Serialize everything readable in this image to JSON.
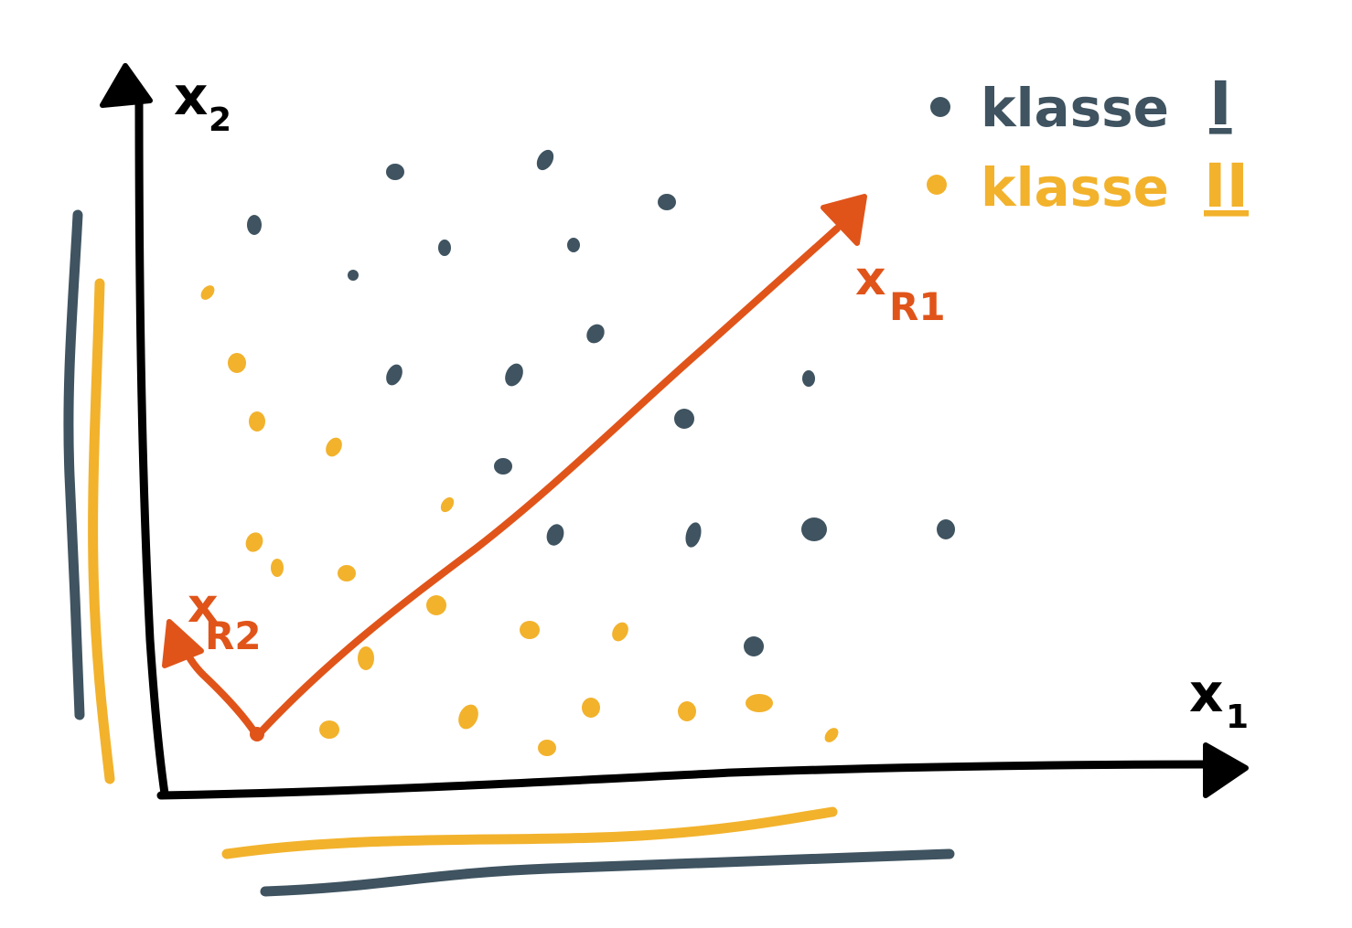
{
  "colors": {
    "axis": "#000000",
    "class1": "#3f5360",
    "class2": "#f2b22c",
    "vector": "#e0541a"
  },
  "axes": {
    "x_label": "x",
    "x_sub": "1",
    "y_label": "x",
    "y_sub": "2"
  },
  "legend": {
    "class1_label": "klasse",
    "class1_numeral": "I",
    "class2_label": "klasse",
    "class2_numeral": "II"
  },
  "vectors": {
    "v1_label": "x",
    "v1_sub": "R1",
    "v2_label": "x",
    "v2_sub": "R2"
  }
}
